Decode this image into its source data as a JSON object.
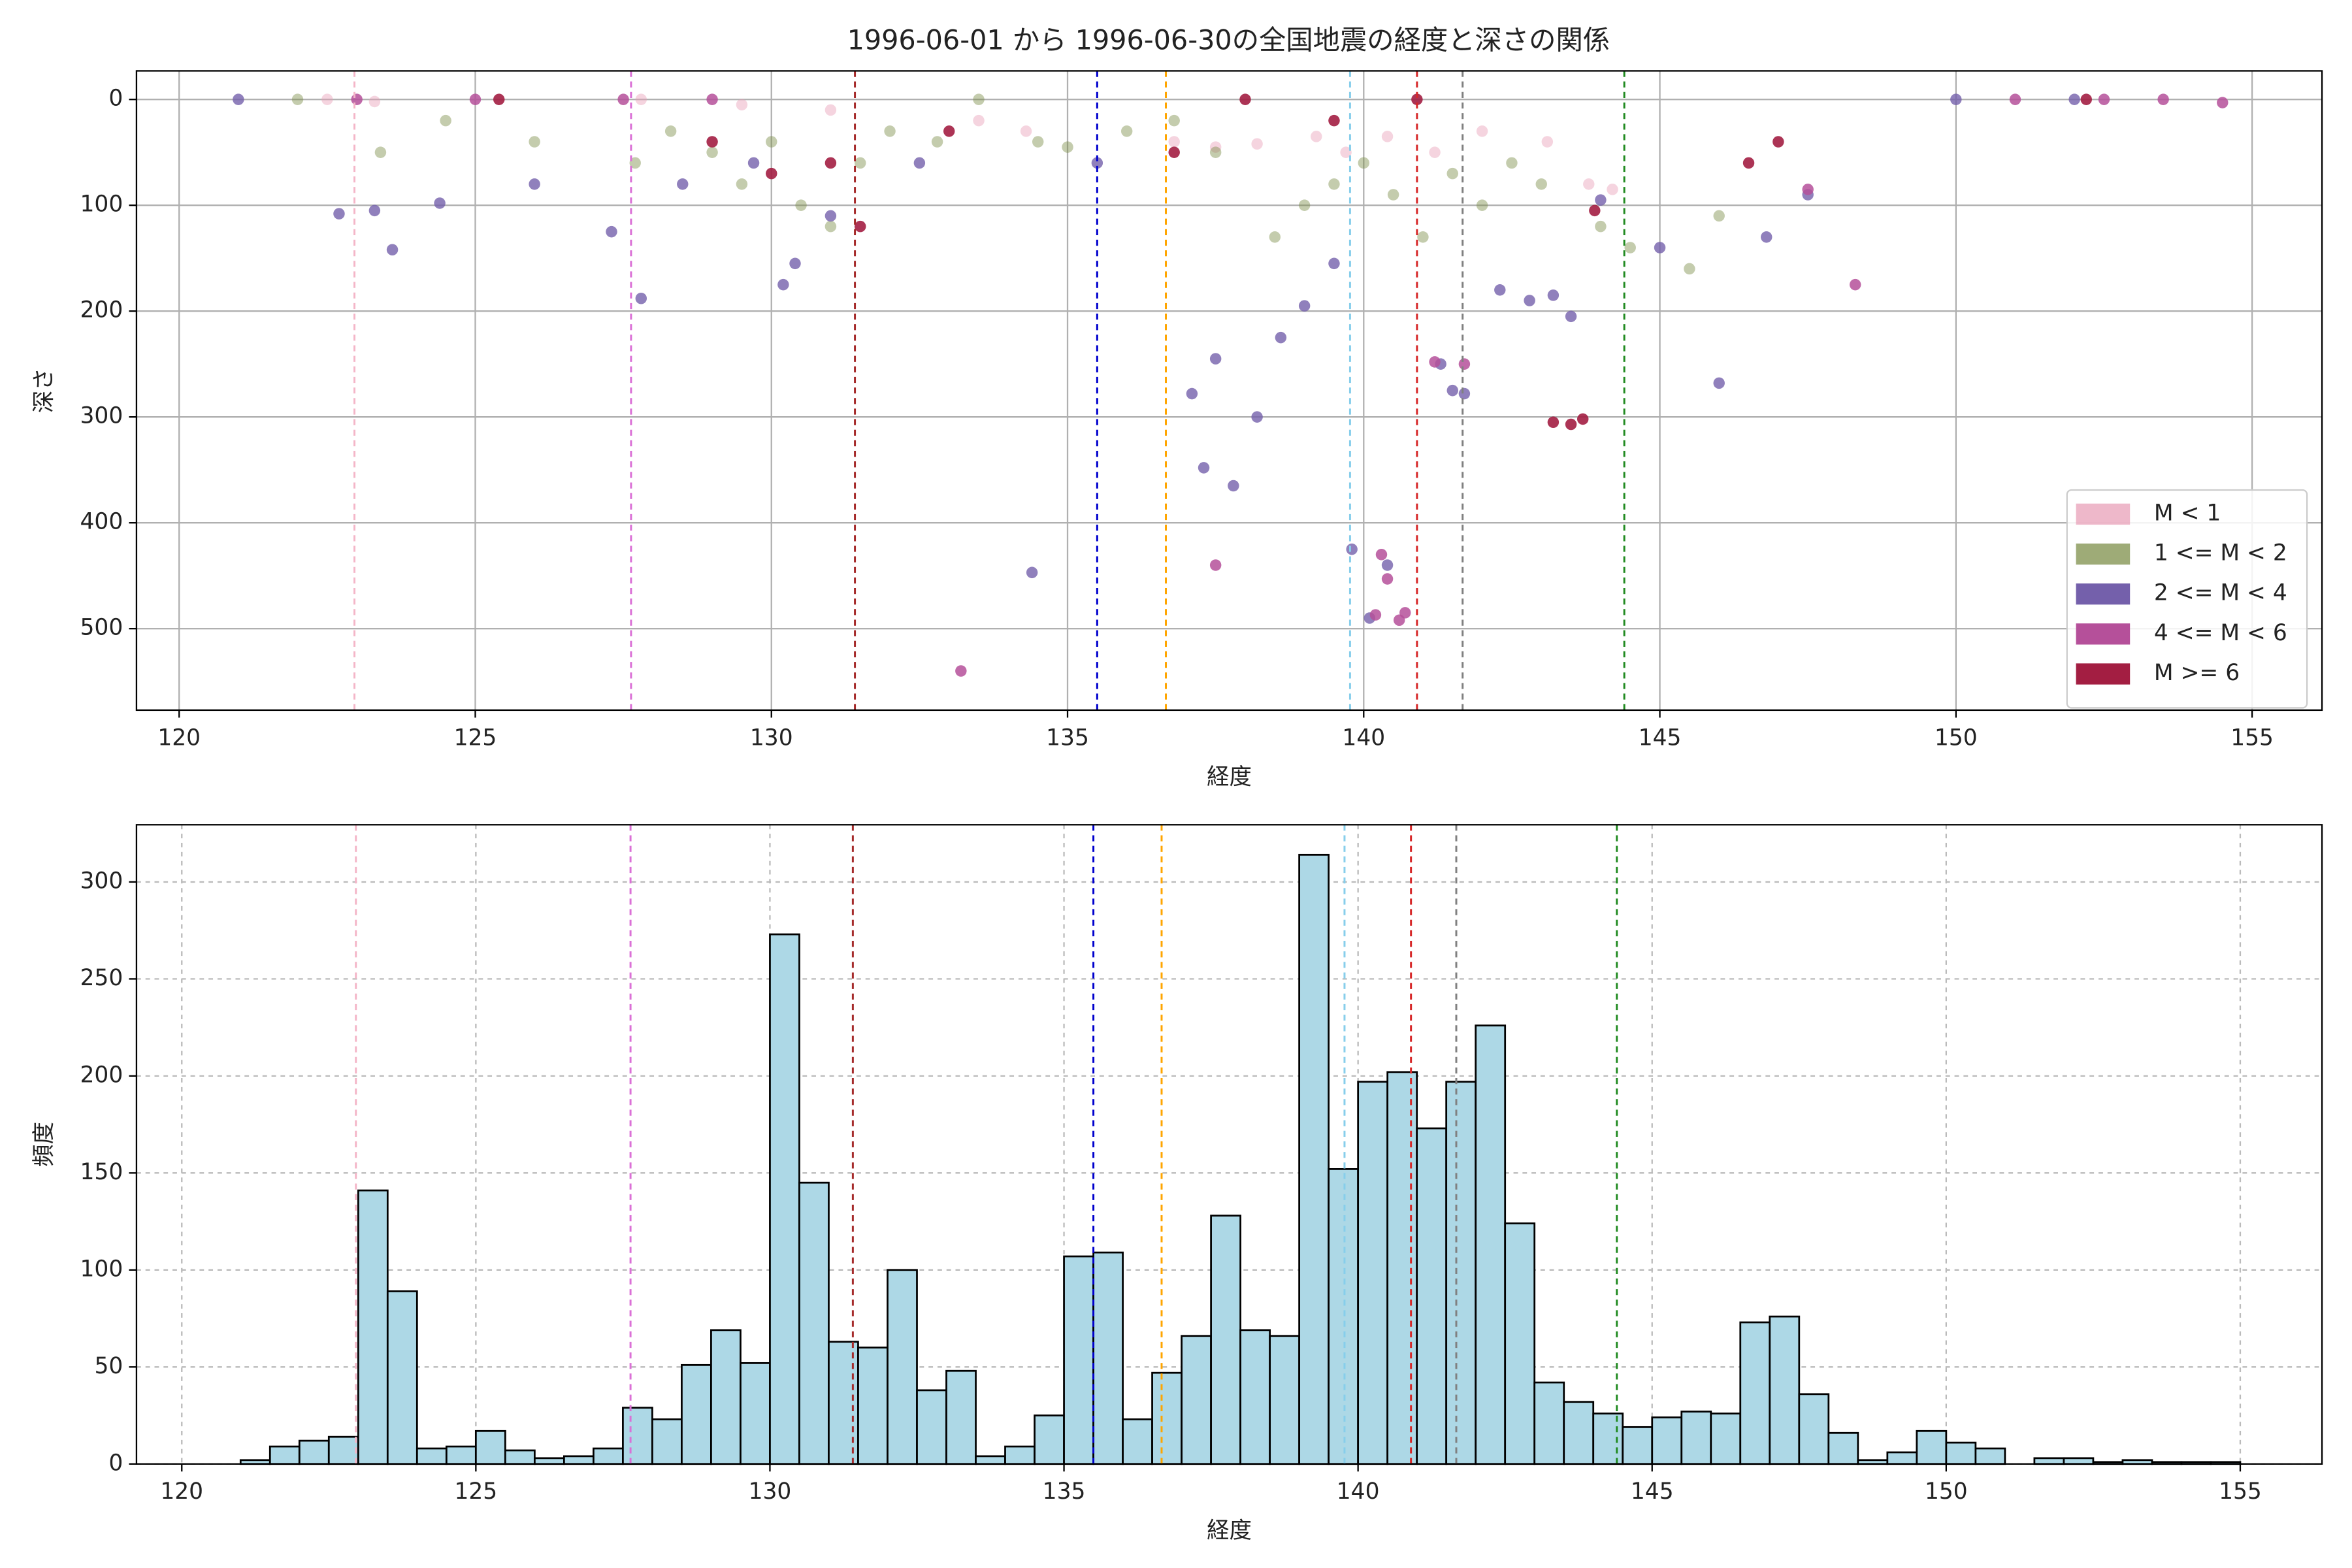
{
  "chart_data": [
    {
      "type": "scatter",
      "title": "1996-06-01 から 1996-06-30の全国地震の経度と深さの関係",
      "xlabel": "経度",
      "ylabel": "深さ",
      "xlim": [
        119.28,
        156.18
      ],
      "xticks": [
        120,
        125,
        130,
        135,
        140,
        145,
        150,
        155
      ],
      "ylim": [
        -27,
        577
      ],
      "y_inverted": true,
      "yticks": [
        0,
        100,
        200,
        300,
        400,
        500
      ],
      "grid": true,
      "grid_style": "solid",
      "legend": "lower right",
      "vlines": [
        {
          "x": 122.96,
          "color": "#f4b6c8"
        },
        {
          "x": 127.63,
          "color": "#da70d6"
        },
        {
          "x": 131.41,
          "color": "#a52a2a"
        },
        {
          "x": 135.5,
          "color": "#0000cd"
        },
        {
          "x": 136.66,
          "color": "#ffa500"
        },
        {
          "x": 139.77,
          "color": "#87ceeb"
        },
        {
          "x": 140.9,
          "color": "#d62728"
        },
        {
          "x": 141.67,
          "color": "#808080"
        },
        {
          "x": 144.4,
          "color": "#228b22"
        }
      ],
      "series": [
        {
          "name": "M < 1",
          "color": "#e8a0b8",
          "opacity": 0.45,
          "x": [
            122.5,
            123.3,
            127.8,
            129.5,
            131,
            133.5,
            134.3,
            136.8,
            137.5,
            138.2,
            139.2,
            139.7,
            140.4,
            141.2,
            142,
            143.1,
            143.8,
            144.2
          ],
          "values": [
            0,
            2,
            0,
            5,
            10,
            20,
            30,
            40,
            45,
            42,
            35,
            50,
            35,
            50,
            30,
            40,
            80,
            85
          ]
        },
        {
          "name": "1 <= M < 2",
          "color": "#7d8f4a",
          "opacity": 0.45,
          "x": [
            122,
            123.4,
            124.5,
            126,
            127.7,
            128.3,
            129,
            129.5,
            130,
            130.5,
            131,
            131.5,
            132,
            132.8,
            133.5,
            134.5,
            135,
            136,
            136.8,
            137.5,
            138.5,
            139,
            139.5,
            140,
            140.5,
            141,
            141.5,
            142,
            142.5,
            143,
            144,
            144.5,
            145.5,
            146
          ],
          "values": [
            0,
            50,
            20,
            40,
            60,
            30,
            50,
            80,
            40,
            100,
            120,
            60,
            30,
            40,
            0,
            40,
            45,
            30,
            20,
            50,
            130,
            100,
            80,
            60,
            90,
            130,
            70,
            100,
            60,
            80,
            120,
            140,
            160,
            110
          ]
        },
        {
          "name": "2 <= M < 4",
          "color": "#7460ab",
          "opacity": 0.8,
          "x": [
            121,
            122.7,
            123.3,
            123.6,
            124.4,
            126,
            127.3,
            127.8,
            128.5,
            129.7,
            130.2,
            130.4,
            131,
            132.5,
            134.4,
            135.5,
            137.1,
            137.3,
            137.5,
            137.8,
            138.2,
            138.6,
            139,
            139.5,
            139.8,
            140.1,
            140.4,
            141.3,
            141.5,
            141.7,
            142.3,
            142.8,
            143.2,
            143.5,
            144,
            145,
            146,
            146.8,
            147.5,
            150,
            152
          ],
          "values": [
            0,
            108,
            105,
            142,
            98,
            80,
            125,
            188,
            80,
            60,
            175,
            155,
            110,
            60,
            447,
            60,
            278,
            348,
            245,
            365,
            300,
            225,
            195,
            155,
            425,
            490,
            440,
            250,
            275,
            278,
            180,
            190,
            185,
            205,
            95,
            140,
            268,
            130,
            90,
            0,
            0
          ]
        },
        {
          "name": "4 <= M < 6",
          "color": "#b5509a",
          "opacity": 0.85,
          "x": [
            123,
            125,
            127.5,
            129,
            133.2,
            137.5,
            140.2,
            140.3,
            140.4,
            140.6,
            140.7,
            141.2,
            141.7,
            147.5,
            148.3,
            151,
            152.5,
            153.5,
            154.5
          ],
          "values": [
            0,
            0,
            0,
            0,
            540,
            440,
            487,
            430,
            453,
            492,
            485,
            248,
            250,
            85,
            175,
            0,
            0,
            0,
            3
          ]
        },
        {
          "name": "M >= 6",
          "color": "#a31e42",
          "opacity": 0.9,
          "x": [
            125.4,
            129,
            130,
            131,
            131.5,
            133,
            136.8,
            138,
            139.5,
            140.9,
            143.2,
            143.5,
            143.7,
            143.9,
            146.5,
            147,
            152.2
          ],
          "values": [
            0,
            40,
            70,
            60,
            120,
            30,
            50,
            0,
            20,
            0,
            305,
            307,
            302,
            105,
            60,
            40,
            0
          ]
        }
      ]
    },
    {
      "type": "histogram",
      "xlabel": "経度",
      "ylabel": "頻度",
      "xlim": [
        119.23,
        156.39
      ],
      "xticks": [
        120,
        125,
        130,
        135,
        140,
        145,
        150,
        155
      ],
      "ylim": [
        0,
        329.5
      ],
      "yticks": [
        0,
        50,
        100,
        150,
        200,
        250,
        300
      ],
      "grid": true,
      "grid_style": "dashed",
      "color": "#add8e6",
      "edgecolor": "#000000",
      "vlines": [
        {
          "x": 122.96,
          "color": "#f4b6c8"
        },
        {
          "x": 127.63,
          "color": "#da70d6"
        },
        {
          "x": 131.41,
          "color": "#a52a2a"
        },
        {
          "x": 135.5,
          "color": "#0000cd"
        },
        {
          "x": 136.66,
          "color": "#ffa500"
        },
        {
          "x": 139.77,
          "color": "#87ceeb"
        },
        {
          "x": 140.9,
          "color": "#d62728"
        },
        {
          "x": 141.67,
          "color": "#808080"
        },
        {
          "x": 144.4,
          "color": "#228b22"
        }
      ],
      "bins": [
        121,
        121.5,
        122,
        122.5,
        123,
        123.5,
        124,
        124.5,
        125,
        125.5,
        126,
        126.5,
        127,
        127.5,
        128,
        128.5,
        129,
        129.5,
        130,
        130.5,
        131,
        131.5,
        132,
        132.5,
        133,
        133.5,
        134,
        134.5,
        135,
        135.5,
        136,
        136.5,
        137,
        137.5,
        138,
        138.5,
        139,
        139.5,
        140,
        140.5,
        141,
        141.5,
        142,
        142.5,
        143,
        143.5,
        144,
        144.5,
        145,
        145.5,
        146,
        146.5,
        147,
        147.5,
        148,
        148.5,
        149,
        149.5,
        150,
        150.5,
        151,
        151.5,
        152,
        152.5,
        153,
        153.5,
        154,
        154.5,
        155
      ],
      "values": [
        2,
        9,
        12,
        14,
        141,
        89,
        8,
        9,
        17,
        7,
        3,
        4,
        8,
        29,
        23,
        51,
        69,
        52,
        273,
        145,
        63,
        60,
        100,
        38,
        48,
        4,
        9,
        25,
        107,
        109,
        23,
        47,
        66,
        128,
        69,
        66,
        314,
        152,
        197,
        202,
        173,
        197,
        226,
        124,
        42,
        32,
        26,
        19,
        24,
        27,
        26,
        73,
        76,
        36,
        16,
        2,
        6,
        17,
        11,
        8,
        0,
        3,
        3,
        1,
        2,
        1,
        1,
        1
      ]
    }
  ]
}
